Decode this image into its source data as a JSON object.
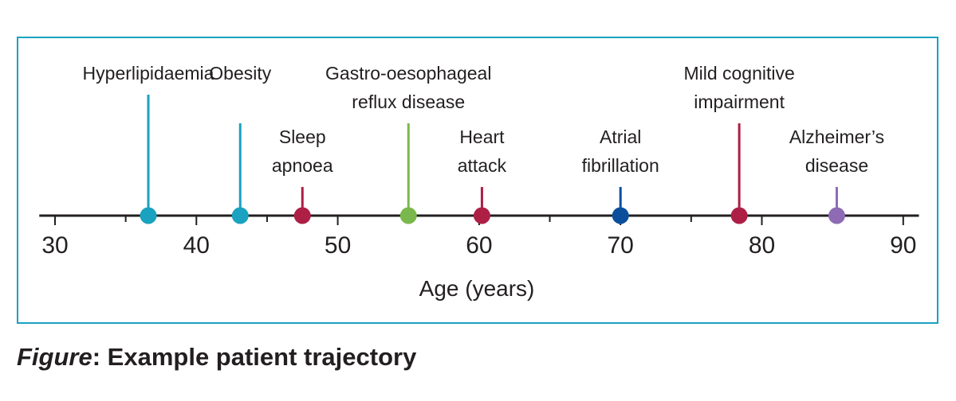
{
  "figure": {
    "caption_prefix": "Figure",
    "caption_separator": ":",
    "caption_text": " Example patient trajectory",
    "border_color": "#1aa2c0"
  },
  "chart_data": {
    "type": "timeline",
    "xlabel": "Age (years)",
    "xlim": [
      29,
      91
    ],
    "ticks": [
      30,
      40,
      50,
      60,
      70,
      80,
      90
    ],
    "minor_ticks": [
      35,
      45,
      55,
      65,
      75,
      85
    ],
    "axis_color": "#231f20",
    "events": [
      {
        "age": 36.6,
        "lines": [
          "Hyperlipidaemia"
        ],
        "color": "#1aa2c0",
        "level": 1
      },
      {
        "age": 43.1,
        "lines": [
          "Obesity"
        ],
        "color": "#1aa2c0",
        "level": 2
      },
      {
        "age": 47.5,
        "lines": [
          "Sleep",
          "apnoea"
        ],
        "color": "#ad1f45",
        "level": 3
      },
      {
        "age": 55.0,
        "lines": [
          "Gastro-oesophageal",
          "reflux disease"
        ],
        "color": "#7ab84e",
        "level": 2
      },
      {
        "age": 60.2,
        "lines": [
          "Heart",
          "attack"
        ],
        "color": "#ad1f45",
        "level": 3
      },
      {
        "age": 70.0,
        "lines": [
          "Atrial",
          "fibrillation"
        ],
        "color": "#0b4f9c",
        "level": 3
      },
      {
        "age": 78.4,
        "lines": [
          "Mild cognitive",
          "impairment"
        ],
        "color": "#ad1f45",
        "level": 2
      },
      {
        "age": 85.3,
        "lines": [
          "Alzheimer’s",
          "disease"
        ],
        "color": "#8e6bb4",
        "level": 3
      }
    ]
  }
}
